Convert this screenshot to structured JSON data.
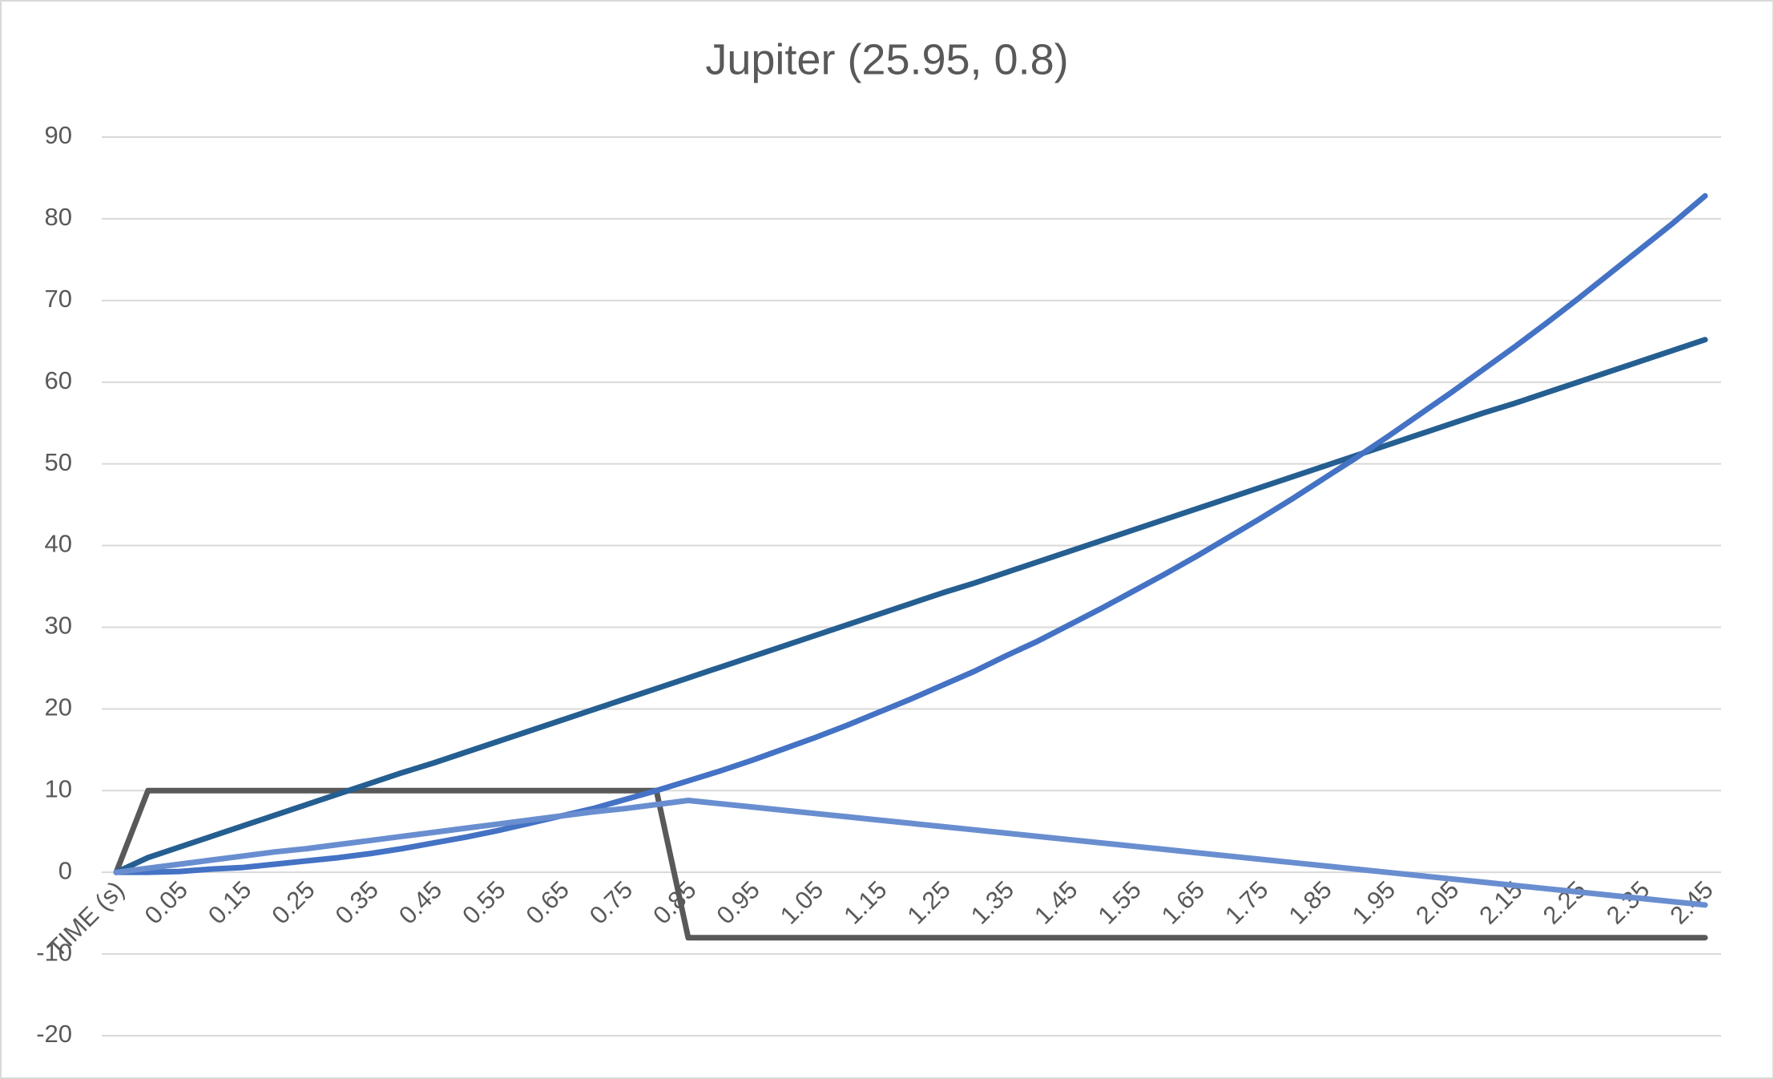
{
  "chart_data": {
    "type": "line",
    "title": "Jupiter (25.95, 0.8)",
    "categories": [
      "TIME (s)",
      null,
      "0.05",
      null,
      "0.15",
      null,
      "0.25",
      null,
      "0.35",
      null,
      "0.45",
      null,
      "0.55",
      null,
      "0.65",
      null,
      "0.75",
      null,
      "0.85",
      null,
      "0.95",
      null,
      "1.05",
      null,
      "1.15",
      null,
      "1.25",
      null,
      "1.35",
      null,
      "1.45",
      null,
      "1.55",
      null,
      "1.65",
      null,
      "1.75",
      null,
      "1.85",
      null,
      "1.95",
      null,
      "2.05",
      null,
      "2.15",
      null,
      "2.25",
      null,
      "2.35",
      null,
      "2.45"
    ],
    "series": [
      {
        "color": "#595959",
        "values": [
          0,
          10,
          10,
          10,
          10,
          10,
          10,
          10,
          10,
          10,
          10,
          10,
          10,
          10,
          10,
          10,
          10,
          10,
          -8,
          -8,
          -8,
          -8,
          -8,
          -8,
          -8,
          -8,
          -8,
          -8,
          -8,
          -8,
          -8,
          -8,
          -8,
          -8,
          -8,
          -8,
          -8,
          -8,
          -8,
          -8,
          -8,
          -8,
          -8,
          -8,
          -8,
          -8,
          -8,
          -8,
          -8,
          -8,
          -8
        ]
      },
      {
        "color": "#255e91",
        "values": [
          0,
          1.8,
          3.1,
          4.4,
          5.7,
          7.0,
          8.3,
          9.6,
          10.9,
          12.2,
          13.4,
          14.7,
          16.0,
          17.3,
          18.6,
          19.9,
          21.2,
          22.5,
          23.8,
          25.1,
          26.4,
          27.7,
          29.0,
          30.3,
          31.6,
          32.9,
          34.2,
          35.4,
          36.7,
          38.0,
          39.3,
          40.6,
          41.9,
          43.2,
          44.5,
          45.8,
          47.1,
          48.4,
          49.7,
          51.0,
          52.3,
          53.6,
          54.9,
          56.2,
          57.4,
          58.7,
          60.0,
          61.3,
          62.6,
          63.9,
          65.2
        ]
      },
      {
        "color": "#4472c4",
        "values": [
          0,
          0,
          0.1,
          0.4,
          0.6,
          1.0,
          1.4,
          1.8,
          2.3,
          2.9,
          3.6,
          4.3,
          5.1,
          6.0,
          6.9,
          7.8,
          8.9,
          10.0,
          11.2,
          12.4,
          13.7,
          15.1,
          16.5,
          18.0,
          19.6,
          21.2,
          22.9,
          24.6,
          26.5,
          28.3,
          30.3,
          32.3,
          34.4,
          36.5,
          38.7,
          41.0,
          43.3,
          45.7,
          48.2,
          50.7,
          53.3,
          56.0,
          58.7,
          61.5,
          64.3,
          67.2,
          70.2,
          73.3,
          76.4,
          79.5,
          82.8
        ]
      },
      {
        "color": "#698ed0",
        "values": [
          0,
          0.5,
          1.0,
          1.5,
          2.0,
          2.5,
          2.9,
          3.4,
          3.9,
          4.4,
          4.9,
          5.4,
          5.9,
          6.4,
          6.9,
          7.4,
          7.8,
          8.3,
          8.8,
          8.4,
          8.0,
          7.6,
          7.2,
          6.8,
          6.4,
          6.0,
          5.6,
          5.2,
          4.8,
          4.4,
          4.0,
          3.6,
          3.2,
          2.8,
          2.4,
          2.0,
          1.6,
          1.2,
          0.8,
          0.4,
          0.0,
          -0.4,
          -0.8,
          -1.2,
          -1.6,
          -2.0,
          -2.4,
          -2.8,
          -3.2,
          -3.6,
          -4.0
        ]
      }
    ],
    "ylim": [
      -20,
      90
    ],
    "yticks": [
      -20,
      -10,
      0,
      10,
      20,
      30,
      40,
      50,
      60,
      70,
      80,
      90
    ],
    "grid": true
  }
}
